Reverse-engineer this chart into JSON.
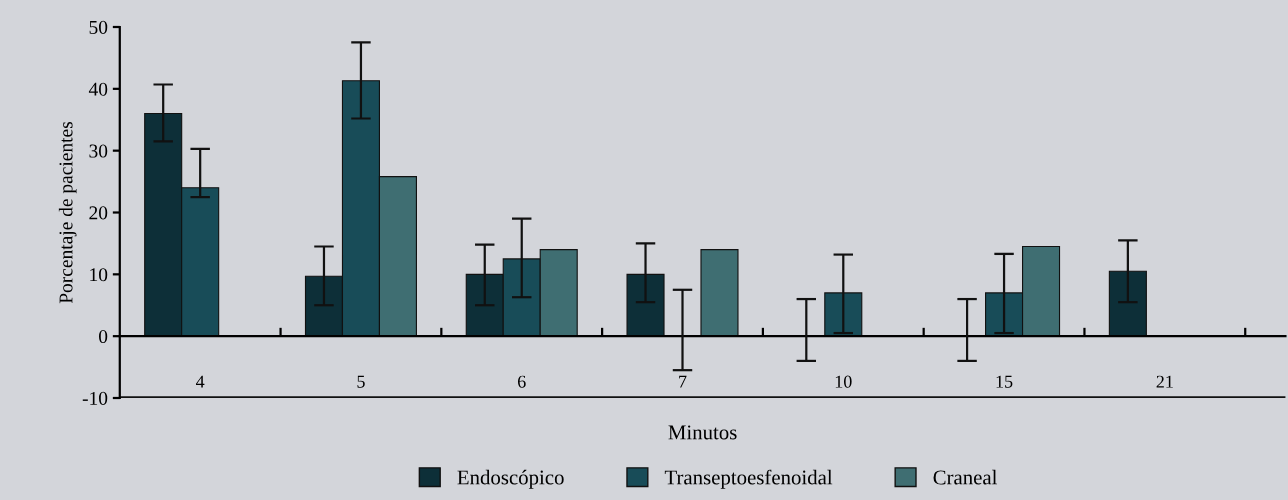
{
  "chart_data": {
    "type": "bar",
    "xlabel": "Minutos",
    "ylabel": "Porcentaje de pacientes",
    "categories": [
      "4",
      "5",
      "6",
      "7",
      "10",
      "15",
      "21"
    ],
    "series": [
      {
        "name": "Endoscópico",
        "color": "#0d2f38",
        "values": [
          36,
          9.7,
          10,
          10,
          0,
          0,
          10.5
        ],
        "errors": [
          [
            31.5,
            40.7
          ],
          [
            5,
            14.5
          ],
          [
            5,
            14.8
          ],
          [
            5.5,
            15
          ],
          [
            -4,
            6
          ],
          [
            -4,
            6
          ],
          [
            5.5,
            15.5
          ]
        ]
      },
      {
        "name": "Transeptoesfenoidal",
        "color": "#184c58",
        "values": [
          24,
          41.3,
          12.5,
          0,
          7,
          7,
          null
        ],
        "errors": [
          [
            22.5,
            30.3
          ],
          [
            35.2,
            47.5
          ],
          [
            6.3,
            19
          ],
          [
            -5.5,
            7.5
          ],
          [
            0.5,
            13.2
          ],
          [
            0.5,
            13.3
          ],
          null
        ]
      },
      {
        "name": "Craneal",
        "color": "#3f6e72",
        "values": [
          null,
          25.8,
          14,
          14,
          null,
          14.5,
          null
        ]
      }
    ],
    "ylim": [
      -10,
      50
    ],
    "yticks": [
      -10,
      0,
      10,
      20,
      30,
      40,
      50
    ],
    "legend": "bottom"
  }
}
